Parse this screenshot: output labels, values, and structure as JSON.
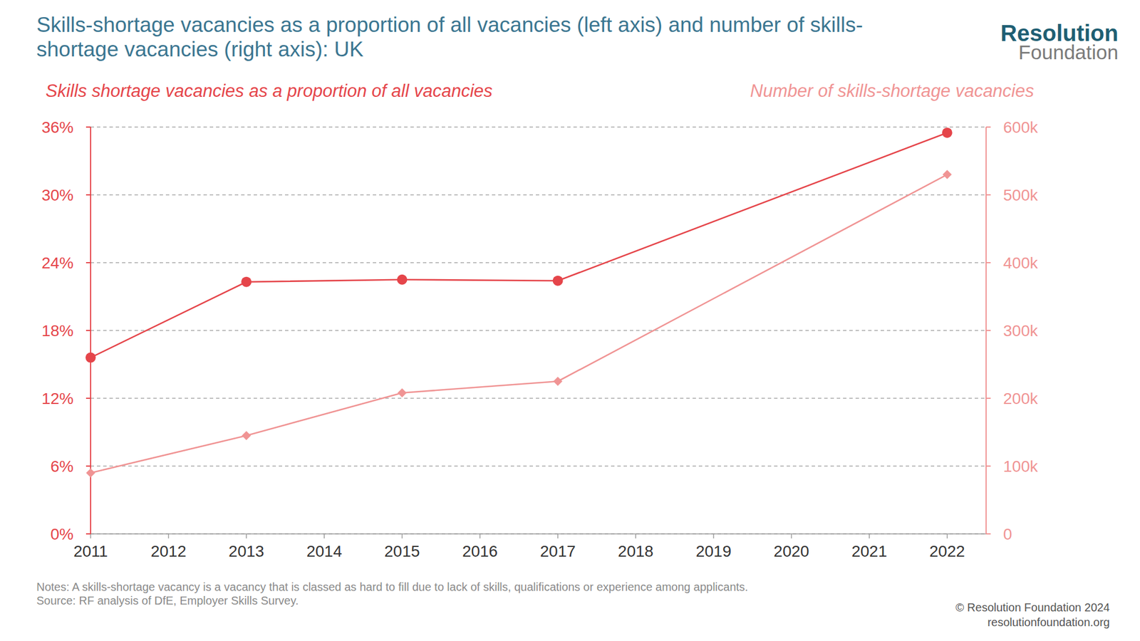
{
  "chart_data": {
    "type": "line",
    "title": "Skills-shortage vacancies as a proportion of all vacancies (left axis) and number of skills-shortage vacancies (right axis): UK",
    "x": [
      2011,
      2013,
      2015,
      2017,
      2022
    ],
    "xlim": [
      2011,
      2022.5
    ],
    "xticks": [
      2011,
      2012,
      2013,
      2014,
      2015,
      2016,
      2017,
      2018,
      2019,
      2020,
      2021,
      2022
    ],
    "ylim": [
      0,
      36
    ],
    "yticks": [
      {
        "value": 0,
        "label": "0%"
      },
      {
        "value": 6,
        "label": "6%"
      },
      {
        "value": 12,
        "label": "12%"
      },
      {
        "value": 18,
        "label": "18%"
      },
      {
        "value": 24,
        "label": "24%"
      },
      {
        "value": 30,
        "label": "30%"
      },
      {
        "value": 36,
        "label": "36%"
      }
    ],
    "y2lim": [
      0,
      600000
    ],
    "y2ticks": [
      0,
      {
        "value": 100000,
        "label": "100k"
      },
      {
        "value": 200000,
        "label": "200k"
      },
      {
        "value": 300000,
        "label": "300k"
      },
      {
        "value": 400000,
        "label": "400k"
      },
      {
        "value": 500000,
        "label": "500k"
      },
      {
        "value": 600000,
        "label": "600k"
      }
    ],
    "grid": true,
    "series": [
      {
        "name": "Skills shortage vacancies as a proportion of all vacancies",
        "color": "#e5454a",
        "marker": "circle",
        "values": [
          15.6,
          22.3,
          22.5,
          22.4,
          35.5
        ]
      },
      {
        "name": "Number of skills-shortage vacancies",
        "color": "#f09494",
        "marker": "diamond",
        "axis": "y2",
        "values": [
          90000,
          145000,
          208000,
          225000,
          530000
        ]
      }
    ],
    "notes": "Notes: A skills-shortage vacancy is a vacancy that is classed as hard to fill due to lack of skills, qualifications or experience among applicants.",
    "source": "Source: RF analysis of DfE, Employer Skills Survey.",
    "credit": [
      "© Resolution Foundation 2024",
      "resolutionfoundation.org"
    ],
    "logo": [
      "Resolution",
      "Foundation"
    ]
  }
}
